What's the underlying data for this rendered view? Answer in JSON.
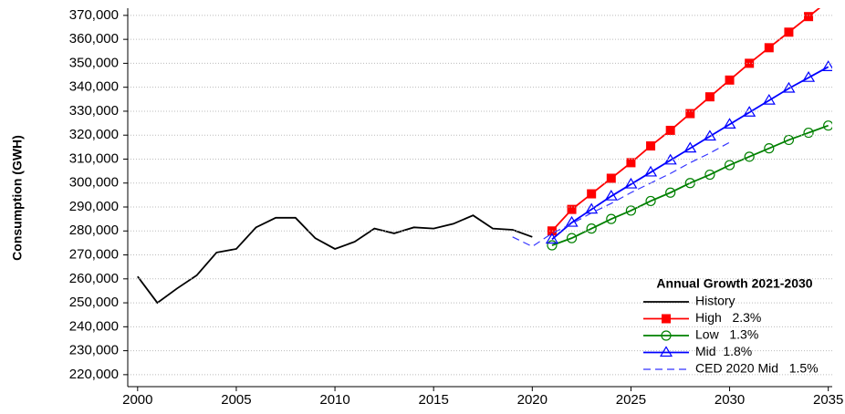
{
  "chart_data": {
    "type": "line",
    "y_label": "Consumption (GWH)",
    "legend_title": "Annual Growth 2021-2030",
    "legend_position": "lower right",
    "grid": true,
    "xlim": [
      1999.5,
      2035.2
    ],
    "xticks": [
      2000,
      2005,
      2010,
      2015,
      2020,
      2025,
      2030,
      2035
    ],
    "ylim": [
      215000,
      373000
    ],
    "yticks": [
      {
        "value": 220000,
        "label": "220,000"
      },
      {
        "value": 230000,
        "label": "230,000"
      },
      {
        "value": 240000,
        "label": "240,000"
      },
      {
        "value": 250000,
        "label": "250,000"
      },
      {
        "value": 260000,
        "label": "260,000"
      },
      {
        "value": 270000,
        "label": "270,000"
      },
      {
        "value": 280000,
        "label": "280,000"
      },
      {
        "value": 290000,
        "label": "290,000"
      },
      {
        "value": 300000,
        "label": "300,000"
      },
      {
        "value": 310000,
        "label": "310,000"
      },
      {
        "value": 320000,
        "label": "320,000"
      },
      {
        "value": 330000,
        "label": "330,000"
      },
      {
        "value": 340000,
        "label": "340,000"
      },
      {
        "value": 350000,
        "label": "350,000"
      },
      {
        "value": 360000,
        "label": "360,000"
      },
      {
        "value": 370000,
        "label": "370,000"
      }
    ],
    "series": [
      {
        "name": "History",
        "color": "#000000",
        "marker": "none",
        "dash": false,
        "x": [
          2000,
          2001,
          2002,
          2003,
          2004,
          2005,
          2006,
          2007,
          2008,
          2009,
          2010,
          2011,
          2012,
          2013,
          2014,
          2015,
          2016,
          2017,
          2018,
          2019,
          2020
        ],
        "values": [
          261000,
          250000,
          256000,
          261500,
          271000,
          272500,
          281500,
          285500,
          285500,
          277000,
          272500,
          275500,
          281000,
          279000,
          281500,
          281000,
          283000,
          286500,
          281000,
          280500,
          277500
        ]
      },
      {
        "name": "High   2.3%",
        "color": "#ff0000",
        "marker": "square",
        "dash": false,
        "x": [
          2021,
          2022,
          2023,
          2024,
          2025,
          2026,
          2027,
          2028,
          2029,
          2030,
          2031,
          2032,
          2033,
          2034,
          2035
        ],
        "values": [
          280000,
          289000,
          295500,
          302000,
          308500,
          315500,
          322000,
          329000,
          336000,
          343000,
          350000,
          356500,
          363000,
          369500,
          376000
        ]
      },
      {
        "name": "Low   1.3%",
        "color": "#008000",
        "marker": "circle",
        "dash": false,
        "x": [
          2021,
          2022,
          2023,
          2024,
          2025,
          2026,
          2027,
          2028,
          2029,
          2030,
          2031,
          2032,
          2033,
          2034,
          2035
        ],
        "values": [
          274000,
          277000,
          281000,
          285000,
          288500,
          292500,
          296000,
          300000,
          303500,
          307500,
          311000,
          314500,
          318000,
          321000,
          324000
        ]
      },
      {
        "name": "Mid  1.8%",
        "color": "#0000ff",
        "marker": "triangle",
        "dash": false,
        "x": [
          2021,
          2022,
          2023,
          2024,
          2025,
          2026,
          2027,
          2028,
          2029,
          2030,
          2031,
          2032,
          2033,
          2034,
          2035
        ],
        "values": [
          276500,
          283500,
          289000,
          294500,
          299500,
          304500,
          309500,
          314500,
          319500,
          324500,
          329500,
          334500,
          339500,
          344000,
          348500
        ]
      },
      {
        "name": "CED 2020 Mid   1.5%",
        "color": "#3333ff",
        "marker": "none",
        "dash": true,
        "x": [
          2019,
          2020,
          2021,
          2022,
          2023,
          2024,
          2025,
          2026,
          2027,
          2028,
          2029,
          2030
        ],
        "values": [
          277500,
          273500,
          279000,
          283000,
          287500,
          291500,
          296000,
          300000,
          304000,
          308500,
          312500,
          317000
        ]
      }
    ]
  }
}
